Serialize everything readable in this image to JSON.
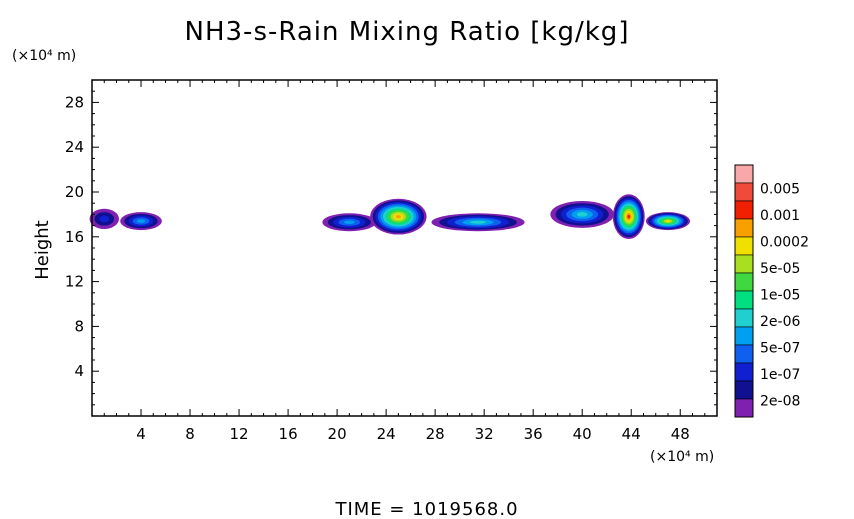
{
  "chart_data": {
    "type": "heatmap",
    "title": "NH3-s-Rain Mixing Ratio [kg/kg]",
    "xlabel": "",
    "ylabel": "Height",
    "x_unit": "(×10⁴ m)",
    "y_unit": "(×10⁴ m)",
    "xlim": [
      0,
      51
    ],
    "ylim": [
      0,
      30
    ],
    "x_ticks": [
      4,
      8,
      12,
      16,
      20,
      24,
      28,
      32,
      36,
      40,
      44,
      48
    ],
    "y_ticks": [
      4,
      8,
      12,
      16,
      20,
      24,
      28
    ],
    "colorbar": {
      "labels": [
        "0.005",
        "0.001",
        "0.0002",
        "5e-05",
        "1e-05",
        "2e-06",
        "5e-07",
        "1e-07",
        "2e-08"
      ],
      "colors": [
        "#f8a8a8",
        "#f04a3a",
        "#f02000",
        "#f8a000",
        "#f0e000",
        "#a8e020",
        "#40d840",
        "#00e080",
        "#20d0d0",
        "#00a0f0",
        "#1060f0",
        "#1020d0",
        "#101090",
        "#8020b0"
      ]
    },
    "blobs": [
      {
        "x": 1.0,
        "y": 17.6,
        "rx": 1.2,
        "ry": 0.9,
        "peak": 3
      },
      {
        "x": 4.0,
        "y": 17.4,
        "rx": 1.7,
        "ry": 0.8,
        "peak": 5
      },
      {
        "x": 21.0,
        "y": 17.3,
        "rx": 2.2,
        "ry": 0.8,
        "peak": 5
      },
      {
        "x": 25.0,
        "y": 17.8,
        "rx": 2.3,
        "ry": 1.6,
        "peak": 11
      },
      {
        "x": 31.5,
        "y": 17.3,
        "rx": 3.8,
        "ry": 0.8,
        "peak": 6
      },
      {
        "x": 40.0,
        "y": 18.0,
        "rx": 2.6,
        "ry": 1.2,
        "peak": 6
      },
      {
        "x": 43.8,
        "y": 17.8,
        "rx": 1.3,
        "ry": 2.0,
        "peak": 12
      },
      {
        "x": 47.0,
        "y": 17.4,
        "rx": 1.8,
        "ry": 0.8,
        "peak": 10
      }
    ]
  },
  "footer": {
    "time_label": "TIME = 1019568.0"
  }
}
